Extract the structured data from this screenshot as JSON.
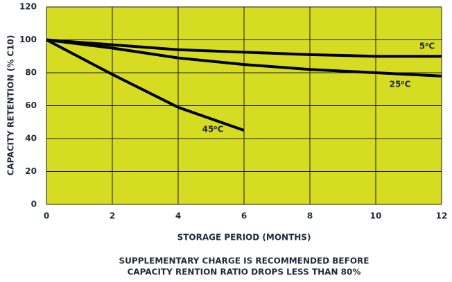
{
  "chart_data": {
    "type": "line",
    "x": [
      0,
      2,
      4,
      6,
      8,
      10,
      12
    ],
    "series": [
      {
        "name": "5⁰C",
        "color": "#000000",
        "values": [
          100,
          97,
          94,
          92.5,
          91,
          90,
          90
        ]
      },
      {
        "name": "25⁰C",
        "color": "#000000",
        "values": [
          100,
          95,
          89,
          85,
          82,
          80,
          78
        ]
      },
      {
        "name": "45⁰C",
        "color": "#000000",
        "values": [
          100,
          79,
          59,
          45,
          null,
          null,
          null
        ]
      }
    ],
    "xlabel": "STORAGE PERIOD (MONTHS)",
    "ylabel": "CAPACITY RETENTION (% C10)",
    "notes": [
      "SUPPLEMENTARY CHARGE IS RECOMMENDED BEFORE",
      "CAPACITY RENTION RATIO DROPS LESS THAN 80%"
    ],
    "xlim": [
      0,
      12
    ],
    "xticks": [
      0,
      2,
      4,
      6,
      8,
      10,
      12
    ],
    "ylim": [
      0,
      120
    ],
    "yticks": [
      0,
      20,
      40,
      60,
      80,
      100,
      120
    ],
    "grid": true,
    "background": "#d5dc22"
  }
}
